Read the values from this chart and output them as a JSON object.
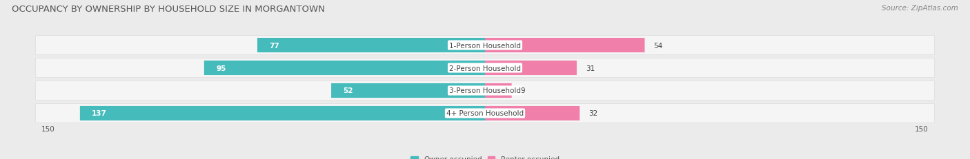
{
  "title": "OCCUPANCY BY OWNERSHIP BY HOUSEHOLD SIZE IN MORGANTOWN",
  "source": "Source: ZipAtlas.com",
  "categories": [
    "1-Person Household",
    "2-Person Household",
    "3-Person Household",
    "4+ Person Household"
  ],
  "owner_values": [
    77,
    95,
    52,
    137
  ],
  "renter_values": [
    54,
    31,
    9,
    32
  ],
  "owner_color": "#45BBBB",
  "renter_color": "#F07FAA",
  "bg_color": "#ebebeb",
  "row_bg_color": "#f5f5f5",
  "max_val": 150,
  "title_fontsize": 9.5,
  "source_fontsize": 7.5,
  "label_fontsize": 7.5,
  "value_fontsize": 7.5,
  "legend_fontsize": 7.5,
  "axis_label_fontsize": 7.5
}
